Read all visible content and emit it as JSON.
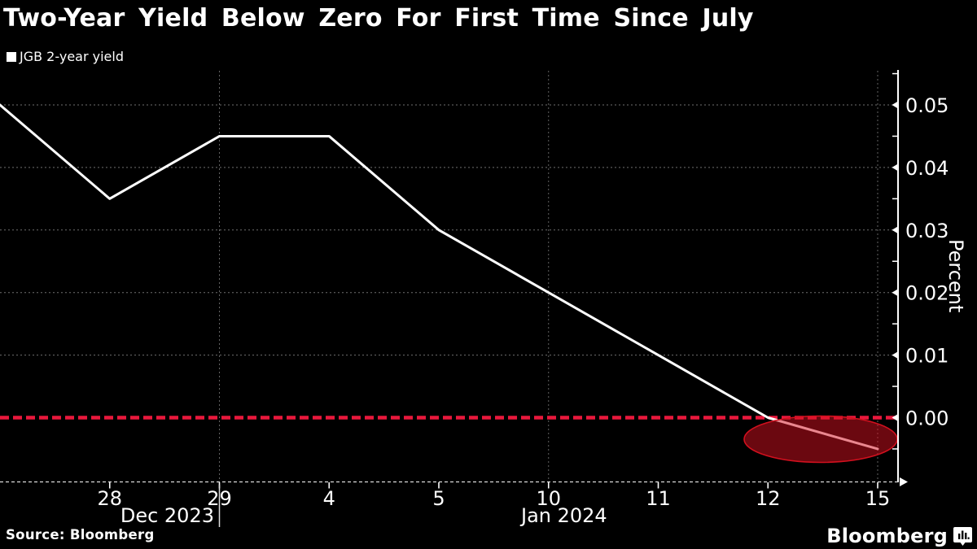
{
  "title": "Two-Year Yield Below Zero For First Time Since July",
  "legend": {
    "label": "JGB 2-year yield",
    "swatch_color": "#ffffff"
  },
  "y_axis": {
    "label": "Percent",
    "tick_labels": [
      "0.05",
      "0.04",
      "0.03",
      "0.02",
      "0.01",
      "0.00"
    ]
  },
  "x_axis": {
    "tick_labels": [
      "28",
      "29",
      "4",
      "5",
      "10",
      "11",
      "12",
      "15"
    ],
    "month_labels": {
      "dec": "Dec 2023",
      "jan": "Jan 2024"
    }
  },
  "zero_line": {
    "value": 0.0,
    "color": "#e9183c"
  },
  "highlight": {
    "shape": "ellipse",
    "meaning": "yield dips below zero (Jan 12 - Jan 15)",
    "fill": "rgba(214,16,32,0.5)",
    "stroke": "#d2101e"
  },
  "source": "Source: Bloomberg",
  "brand": {
    "name": "Bloomberg",
    "icon": "bloomberg-bars-icon"
  },
  "chart_data": {
    "type": "line",
    "title": "Two-Year Yield Below Zero For First Time Since July",
    "ylabel": "Percent",
    "ylim": [
      -0.0103,
      0.0555
    ],
    "yticks": [
      0.05,
      0.04,
      0.03,
      0.02,
      0.01,
      0.0
    ],
    "grid": "dotted horizontal at each ytick; dotted vertical at Dec 29, Jan 10, Jan 15",
    "legend_position": "top-left",
    "x": [
      "Dec 27",
      "Dec 28",
      "Dec 29",
      "Jan 4",
      "Jan 5",
      "Jan 10",
      "Jan 11",
      "Jan 12",
      "Jan 15"
    ],
    "xticklabels_shown": [
      "28",
      "29",
      "4",
      "5",
      "10",
      "11",
      "12",
      "15"
    ],
    "series": [
      {
        "name": "JGB 2-year yield",
        "color": "#ffffff",
        "values": [
          0.05,
          0.035,
          0.045,
          0.045,
          0.03,
          0.02,
          0.01,
          0.0,
          -0.005
        ]
      }
    ],
    "annotations": {
      "zero_reference_line": 0.0,
      "highlight": "dark red ellipse around the below-zero segment after Jan 12"
    }
  }
}
